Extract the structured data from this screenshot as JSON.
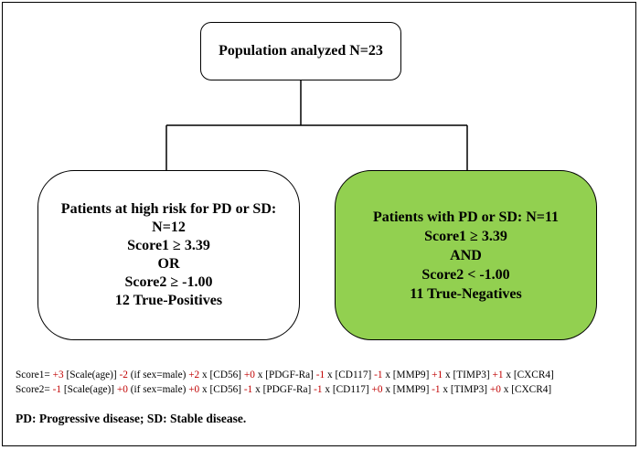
{
  "top": {
    "label": "Population analyzed N=23"
  },
  "left": {
    "lines": [
      "Patients at high risk for PD or SD:",
      "N=12",
      "Score1 ≥ 3.39",
      "OR",
      "Score2 ≥ -1.00",
      "12 True-Positives"
    ],
    "fill": "#ffffff"
  },
  "right": {
    "lines": [
      "Patients with PD or SD: N=11",
      "Score1 ≥ 3.39",
      "AND",
      "Score2 < -1.00",
      "11 True-Negatives"
    ],
    "fill": "#92d050"
  },
  "score1": {
    "name": "Score1=",
    "terms": [
      {
        "coef": "+3",
        "factor": "[Scale(age)]"
      },
      {
        "coef": "-2",
        "factor": "(if sex=male)"
      },
      {
        "coef": "+2",
        "factor": "x [CD56]"
      },
      {
        "coef": "+0",
        "factor": "x [PDGF-Ra]"
      },
      {
        "coef": "-1",
        "factor": "x [CD117]"
      },
      {
        "coef": "-1",
        "factor": "x [MMP9]"
      },
      {
        "coef": "+1",
        "factor": "x [TIMP3]"
      },
      {
        "coef": "+1",
        "factor": "x [CXCR4]"
      }
    ]
  },
  "score2": {
    "name": "Score2=",
    "terms": [
      {
        "coef": "-1",
        "factor": "[Scale(age)]"
      },
      {
        "coef": "+0",
        "factor": "(if sex=male)"
      },
      {
        "coef": "+0",
        "factor": "x [CD56]"
      },
      {
        "coef": "-1",
        "factor": "x [PDGF-Ra]"
      },
      {
        "coef": "-1",
        "factor": "x [CD117]"
      },
      {
        "coef": "+0",
        "factor": "x [MMP9]"
      },
      {
        "coef": "-1",
        "factor": "x [TIMP3]"
      },
      {
        "coef": "+0",
        "factor": "x [CXCR4]"
      }
    ]
  },
  "legend": "PD: Progressive disease; SD: Stable disease.",
  "colors": {
    "coefficient": "#c00000",
    "green_box": "#92d050"
  }
}
